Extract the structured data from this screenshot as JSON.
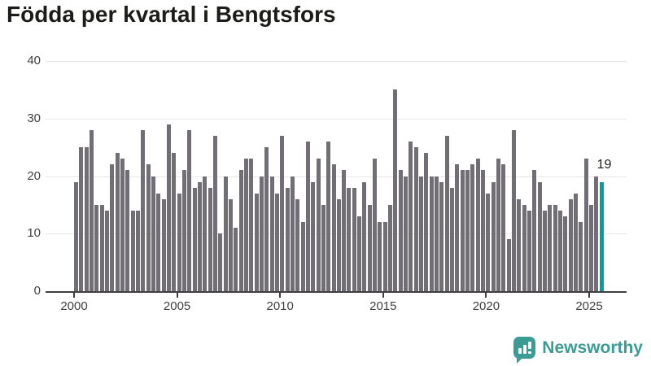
{
  "title": "Födda per kvartal i Bengtsfors",
  "highlight_label": "19",
  "logo": {
    "text": "Newsworthy",
    "icon": "newsworthy-speech-bubble-bar-chart-icon"
  },
  "colors": {
    "bar": "#716e75",
    "highlight": "#00a0a1",
    "grid": "#e7e7e7",
    "axis": "#3f3f3f",
    "axis_text": "#3f3f3f",
    "title_text": "#1c1c19",
    "logo": "#3a9c93",
    "background": "#ffffff"
  },
  "chart_data": {
    "type": "bar",
    "title": "Födda per kvartal i Bengtsfors",
    "x_unit": "quarter",
    "ylim": [
      0,
      40
    ],
    "yticks": [
      0,
      10,
      20,
      30,
      40
    ],
    "xticks": [
      2000,
      2005,
      2010,
      2015,
      2020,
      2025
    ],
    "grid": "horizontal-only",
    "legend": "none",
    "highlight": {
      "year": 2025,
      "quarter": "Q3",
      "value": 19,
      "color": "#00a0a1",
      "label": "19"
    },
    "years": [
      {
        "year": 2000,
        "values": [
          19,
          25,
          25,
          28
        ]
      },
      {
        "year": 2001,
        "values": [
          15,
          15,
          14,
          22
        ]
      },
      {
        "year": 2002,
        "values": [
          24,
          23,
          21,
          14
        ]
      },
      {
        "year": 2003,
        "values": [
          14,
          28,
          22,
          20
        ]
      },
      {
        "year": 2004,
        "values": [
          17,
          16,
          29,
          24
        ]
      },
      {
        "year": 2005,
        "values": [
          17,
          21,
          28,
          18
        ]
      },
      {
        "year": 2006,
        "values": [
          19,
          20,
          18,
          27
        ]
      },
      {
        "year": 2007,
        "values": [
          10,
          20,
          16,
          11
        ]
      },
      {
        "year": 2008,
        "values": [
          21,
          23,
          23,
          17
        ]
      },
      {
        "year": 2009,
        "values": [
          20,
          25,
          20,
          17
        ]
      },
      {
        "year": 2010,
        "values": [
          27,
          18,
          20,
          16
        ]
      },
      {
        "year": 2011,
        "values": [
          12,
          26,
          19,
          23
        ]
      },
      {
        "year": 2012,
        "values": [
          15,
          26,
          22,
          16
        ]
      },
      {
        "year": 2013,
        "values": [
          21,
          18,
          18,
          13
        ]
      },
      {
        "year": 2014,
        "values": [
          19,
          15,
          23,
          12
        ]
      },
      {
        "year": 2015,
        "values": [
          12,
          15,
          35,
          21
        ]
      },
      {
        "year": 2016,
        "values": [
          20,
          26,
          25,
          20
        ]
      },
      {
        "year": 2017,
        "values": [
          24,
          20,
          20,
          19
        ]
      },
      {
        "year": 2018,
        "values": [
          27,
          18,
          22,
          21
        ]
      },
      {
        "year": 2019,
        "values": [
          21,
          22,
          23,
          21
        ]
      },
      {
        "year": 2020,
        "values": [
          17,
          19,
          23,
          22
        ]
      },
      {
        "year": 2021,
        "values": [
          9,
          28,
          16,
          15
        ]
      },
      {
        "year": 2022,
        "values": [
          14,
          21,
          19,
          14
        ]
      },
      {
        "year": 2023,
        "values": [
          15,
          15,
          14,
          13
        ]
      },
      {
        "year": 2024,
        "values": [
          16,
          17,
          12,
          23
        ]
      },
      {
        "year": 2025,
        "values": [
          15,
          20,
          19
        ]
      }
    ]
  }
}
